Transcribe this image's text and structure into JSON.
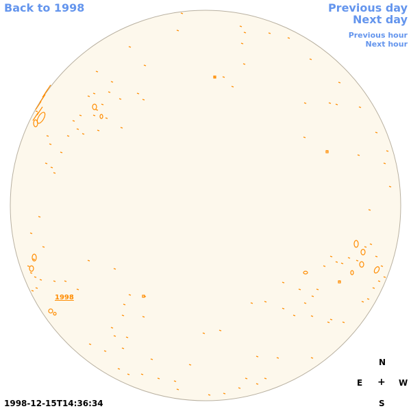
{
  "nav": {
    "back_label": "Back to 1998",
    "previous_day_label": "Previous day",
    "next_day_label": "Next day",
    "previous_hour_label": "Previous hour",
    "next_hour_label": "Next hour"
  },
  "disk": {
    "fill_color": "#fdf8ec",
    "edge_color": "#b8b0a0",
    "region_color": "#ff8c00",
    "region_label": "1998"
  },
  "compass": {
    "north": "N",
    "east": "E",
    "center": "+",
    "west": "W",
    "south": "S"
  },
  "timestamp": "1998-12-15T14:36:34"
}
